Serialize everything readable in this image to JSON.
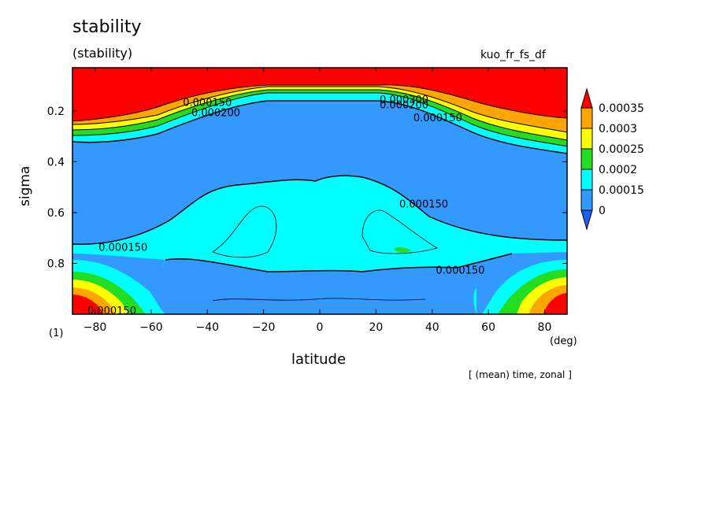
{
  "title": "stability",
  "subtitle": "(stability)",
  "run_name": "kuo_fr_fs_df",
  "panel_label": "(1)",
  "x_unit": "(deg)",
  "note": "[ (mean) time, zonal ]",
  "chart_data": {
    "type": "heatmap",
    "xlabel": "latitude",
    "ylabel": "sigma",
    "xlim": [
      -88,
      88
    ],
    "ylim": [
      1.0,
      0.03
    ],
    "x_ticks": [
      -80,
      -60,
      -40,
      -20,
      0,
      20,
      40,
      60,
      80
    ],
    "x_tick_labels": [
      "−80",
      "−60",
      "−40",
      "−20",
      "0",
      "20",
      "40",
      "60",
      "80"
    ],
    "y_ticks": [
      0.2,
      0.4,
      0.6,
      0.8
    ],
    "y_tick_labels": [
      "0.2",
      "0.4",
      "0.6",
      "0.8"
    ],
    "y_inverted": true,
    "colorbar": {
      "levels": [
        0,
        0.00015,
        0.0002,
        0.00025,
        0.0003,
        0.00035
      ],
      "labels": [
        "0",
        "0.00015",
        "0.0002",
        "0.00025",
        "0.0003",
        "0.00035"
      ],
      "colors": [
        "#1e5ff0",
        "#3399ff",
        "#00ffff",
        "#22dd22",
        "#ffff00",
        "#ffa500",
        "#ff0000"
      ]
    },
    "contour_labels": [
      {
        "text": "0.000150",
        "lat": -70,
        "sigma": 0.75
      },
      {
        "text": "0.000150",
        "lat": 37,
        "sigma": 0.58
      },
      {
        "text": "0.000150",
        "lat": 50,
        "sigma": 0.84
      },
      {
        "text": "0.000150",
        "lat": 42,
        "sigma": 0.24
      },
      {
        "text": "0.000150",
        "lat": -40,
        "sigma": 0.18
      },
      {
        "text": "0.000200",
        "lat": -37,
        "sigma": 0.22
      },
      {
        "text": "0.000300",
        "lat": 30,
        "sigma": 0.17
      },
      {
        "text": "0.000200",
        "lat": 30,
        "sigma": 0.19
      },
      {
        "text": "0.000150",
        "lat": -74,
        "sigma": 1.0
      }
    ]
  }
}
